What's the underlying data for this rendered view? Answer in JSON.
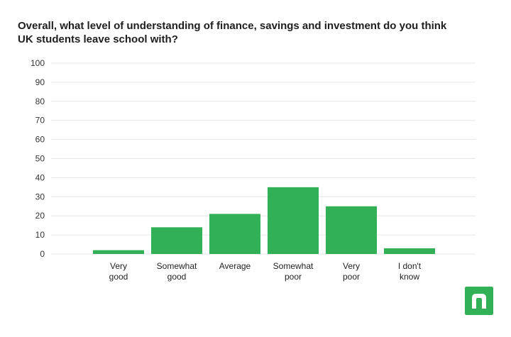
{
  "chart_data": {
    "type": "bar",
    "title": "Overall, what level of understanding of finance, savings and investment do you think\nUK students leave school with?",
    "categories": [
      [
        "Very",
        "good"
      ],
      [
        "Somewhat",
        "good"
      ],
      [
        "Average"
      ],
      [
        "Somewhat",
        "poor"
      ],
      [
        "Very",
        "poor"
      ],
      [
        "I don't",
        "know"
      ]
    ],
    "values": [
      2,
      14,
      21,
      35,
      25,
      3
    ],
    "ylim": [
      0,
      100
    ],
    "yticks": [
      0,
      10,
      20,
      30,
      40,
      50,
      60,
      70,
      80,
      90,
      100
    ],
    "xlabel": "",
    "ylabel": "",
    "grid": true,
    "bar_color": "#31b055",
    "grid_color": "#e6e6e6"
  },
  "logo": {
    "icon": "n-logo-icon",
    "color": "#31b055"
  }
}
